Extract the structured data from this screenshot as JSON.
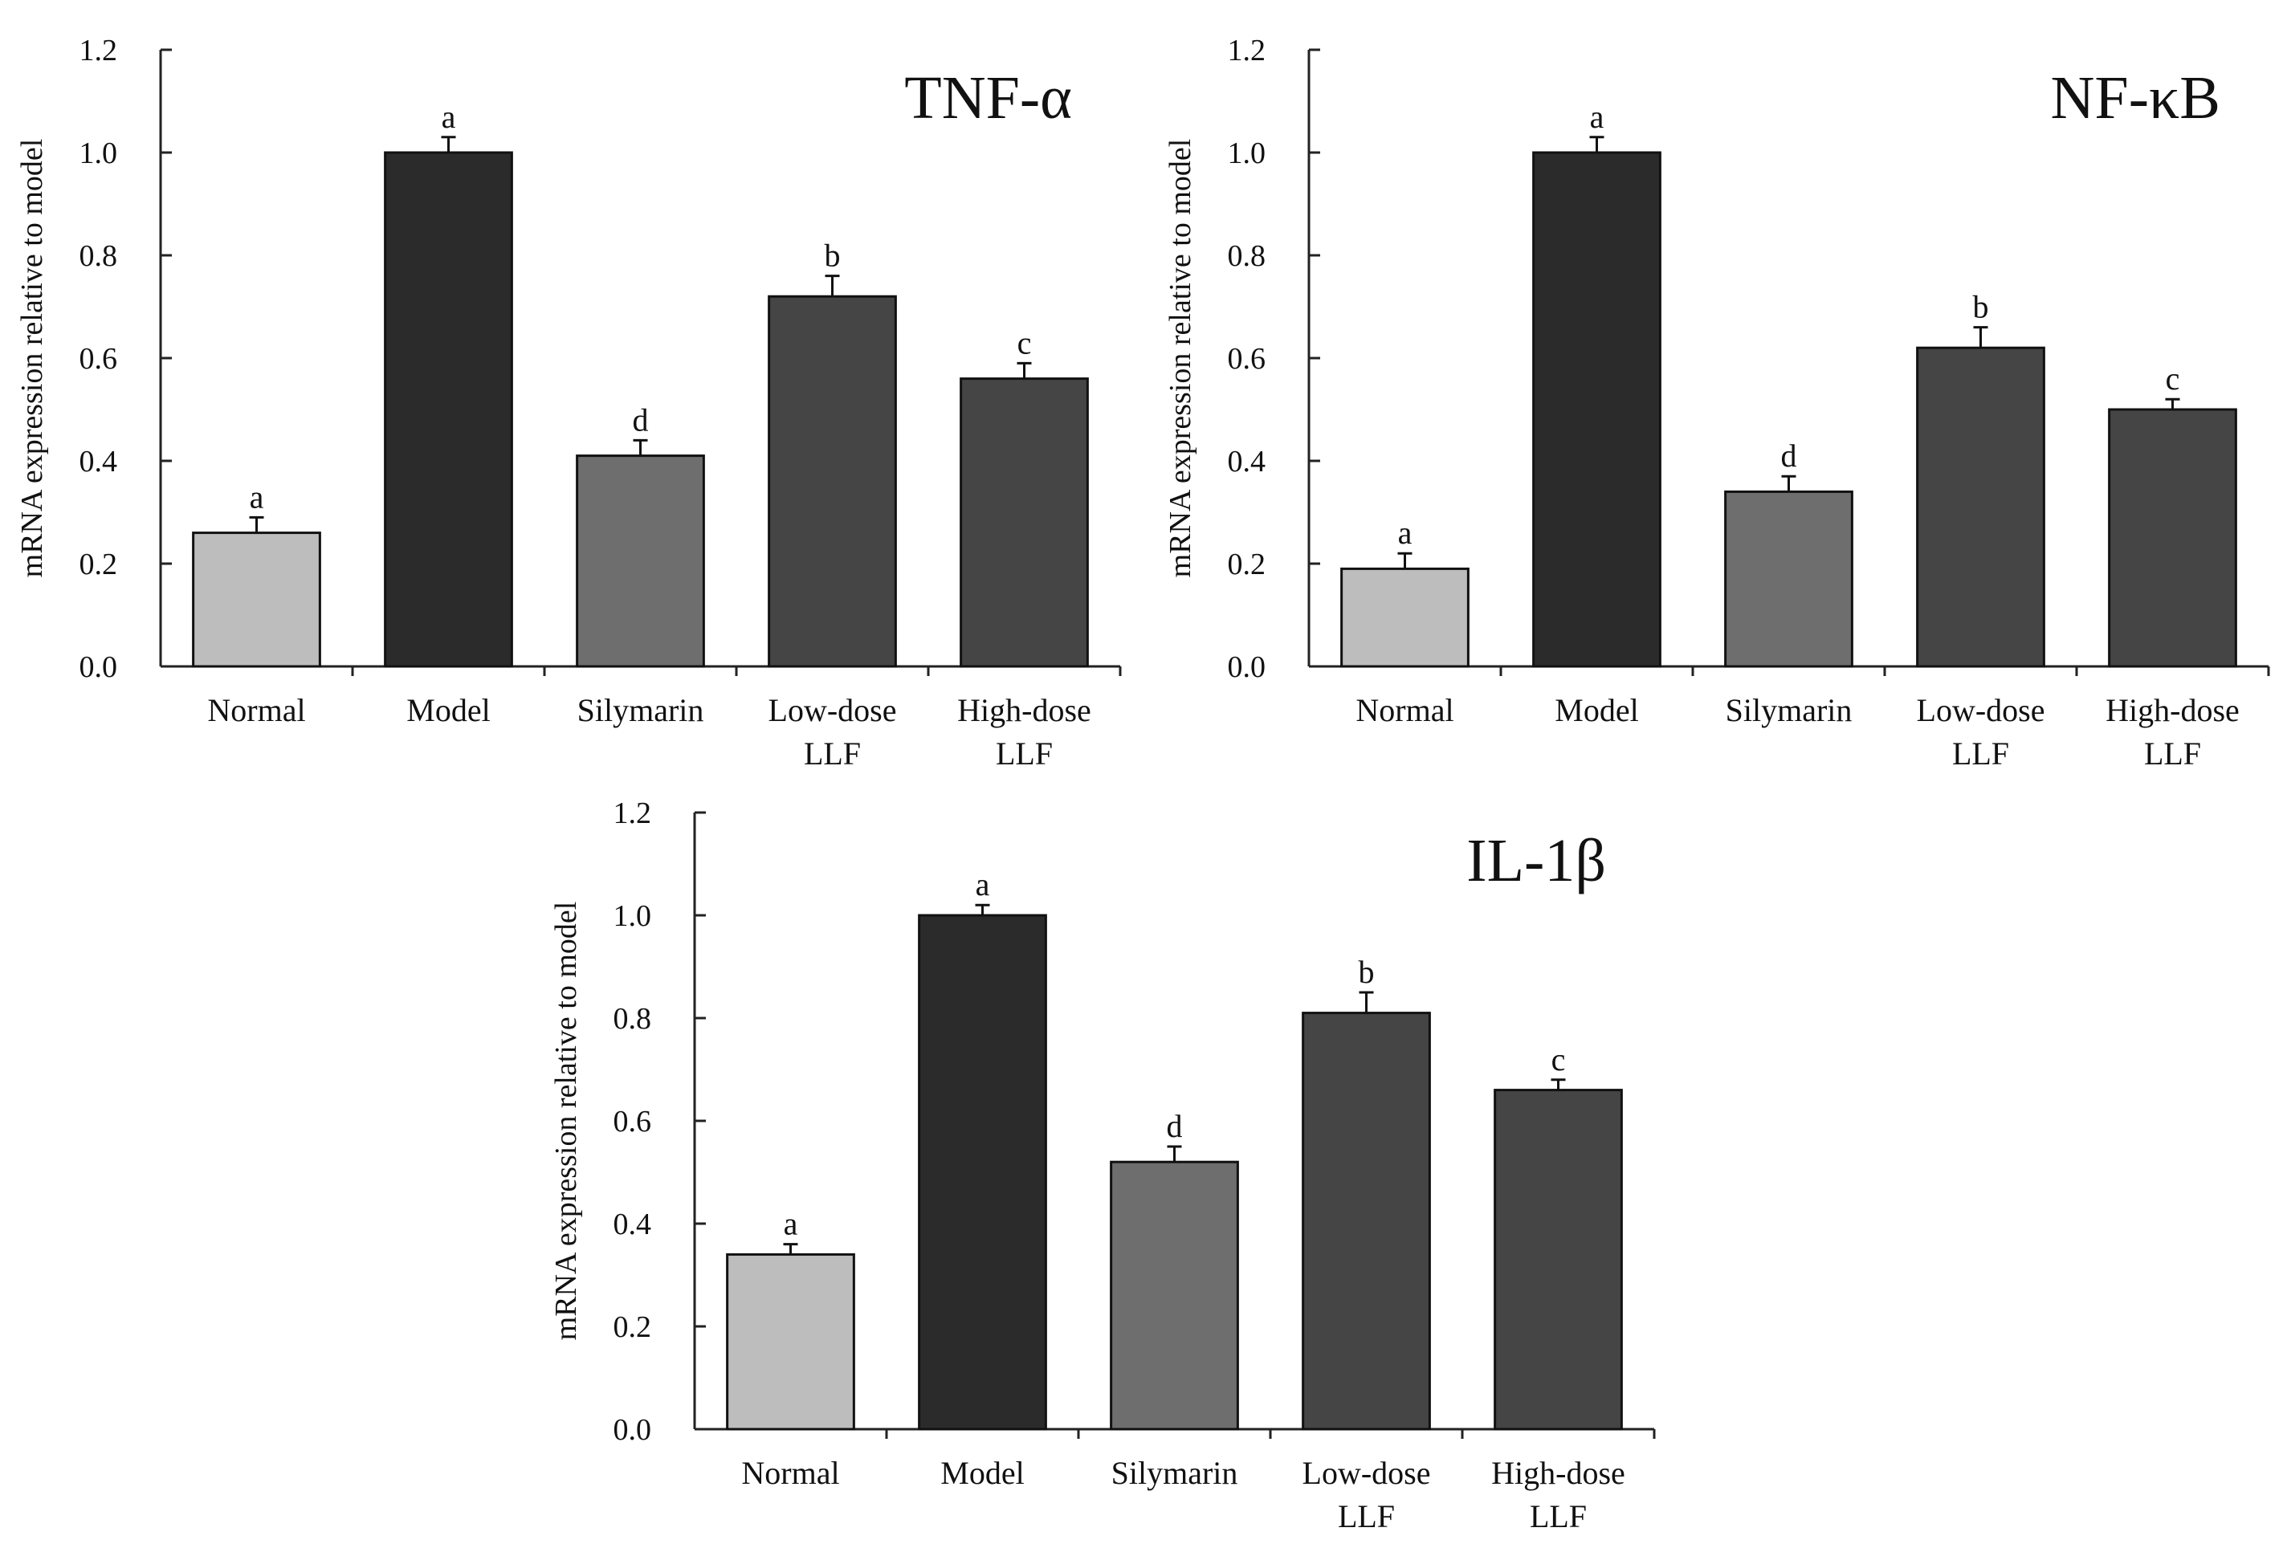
{
  "chart_data": [
    {
      "type": "bar",
      "title": "TNF-α",
      "ylabel": "mRNA expression relative to model",
      "xlabel": "",
      "ylim": [
        0,
        1.2
      ],
      "yticks": [
        "0.0",
        "0.2",
        "0.4",
        "0.6",
        "0.8",
        "1.0",
        "1.2"
      ],
      "categories": [
        [
          "Normal"
        ],
        [
          "Model"
        ],
        [
          "Silymarin"
        ],
        [
          "Low-dose",
          "LLF"
        ],
        [
          "High-dose",
          "LLF"
        ]
      ],
      "values": [
        0.26,
        1.0,
        0.41,
        0.72,
        0.56
      ],
      "errors": [
        0.03,
        0.03,
        0.03,
        0.04,
        0.03
      ],
      "significance": [
        "a",
        "a",
        "d",
        "b",
        "c"
      ],
      "colors": [
        "#bdbdbd",
        "#2b2b2b",
        "#6e6e6e",
        "#454545",
        "#454545"
      ]
    },
    {
      "type": "bar",
      "title": "NF-κB",
      "ylabel": "mRNA expression relative to model",
      "xlabel": "",
      "ylim": [
        0,
        1.2
      ],
      "yticks": [
        "0.0",
        "0.2",
        "0.4",
        "0.6",
        "0.8",
        "1.0",
        "1.2"
      ],
      "categories": [
        [
          "Normal"
        ],
        [
          "Model"
        ],
        [
          "Silymarin"
        ],
        [
          "Low-dose",
          "LLF"
        ],
        [
          "High-dose",
          "LLF"
        ]
      ],
      "values": [
        0.19,
        1.0,
        0.34,
        0.62,
        0.5
      ],
      "errors": [
        0.03,
        0.03,
        0.03,
        0.04,
        0.02
      ],
      "significance": [
        "a",
        "a",
        "d",
        "b",
        "c"
      ],
      "colors": [
        "#bdbdbd",
        "#2b2b2b",
        "#6e6e6e",
        "#454545",
        "#454545"
      ]
    },
    {
      "type": "bar",
      "title": "IL-1β",
      "ylabel": "mRNA expression relative to model",
      "xlabel": "",
      "ylim": [
        0,
        1.2
      ],
      "yticks": [
        "0.0",
        "0.2",
        "0.4",
        "0.6",
        "0.8",
        "1.0",
        "1.2"
      ],
      "categories": [
        [
          "Normal"
        ],
        [
          "Model"
        ],
        [
          "Silymarin"
        ],
        [
          "Low-dose",
          "LLF"
        ],
        [
          "High-dose",
          "LLF"
        ]
      ],
      "values": [
        0.34,
        1.0,
        0.52,
        0.81,
        0.66
      ],
      "errors": [
        0.02,
        0.02,
        0.03,
        0.04,
        0.02
      ],
      "significance": [
        "a",
        "a",
        "d",
        "b",
        "c"
      ],
      "colors": [
        "#bdbdbd",
        "#2b2b2b",
        "#6e6e6e",
        "#454545",
        "#454545"
      ]
    }
  ]
}
